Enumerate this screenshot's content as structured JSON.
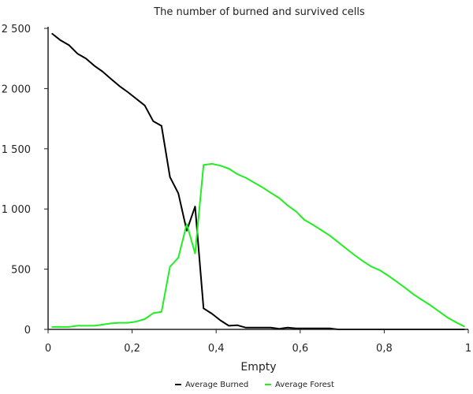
{
  "chart_data": {
    "type": "line",
    "title": "The number of burned and survived cells",
    "xlabel": "Empty",
    "ylabel": "",
    "xlim": [
      0,
      1
    ],
    "ylim": [
      0,
      2500
    ],
    "grid": false,
    "legend_position": "bottom",
    "x_ticks": [
      {
        "value": 0,
        "label": "0"
      },
      {
        "value": 0.2,
        "label": "0,2"
      },
      {
        "value": 0.4,
        "label": "0,4"
      },
      {
        "value": 0.6,
        "label": "0,6"
      },
      {
        "value": 0.8,
        "label": "0,8"
      },
      {
        "value": 1,
        "label": "1"
      }
    ],
    "y_ticks": [
      {
        "value": 0,
        "label": "0"
      },
      {
        "value": 500,
        "label": "500"
      },
      {
        "value": 1000,
        "label": "1 000"
      },
      {
        "value": 1500,
        "label": "1 500"
      },
      {
        "value": 2000,
        "label": "2 000"
      },
      {
        "value": 2500,
        "label": "2 500"
      }
    ],
    "series": [
      {
        "name": "Average Burned",
        "color": "#000000",
        "x": [
          0.01,
          0.03,
          0.05,
          0.07,
          0.09,
          0.11,
          0.13,
          0.15,
          0.17,
          0.19,
          0.21,
          0.23,
          0.25,
          0.27,
          0.29,
          0.31,
          0.33,
          0.35,
          0.37,
          0.39,
          0.41,
          0.43,
          0.45,
          0.47,
          0.49,
          0.51,
          0.53,
          0.55,
          0.57,
          0.59,
          0.61,
          0.63,
          0.65,
          0.67,
          0.69,
          0.71,
          0.73,
          0.75,
          0.77,
          0.79,
          0.81,
          0.83,
          0.85,
          0.87,
          0.89,
          0.91,
          0.93,
          0.95,
          0.97,
          0.99
        ],
        "values": [
          2455,
          2400,
          2360,
          2290,
          2250,
          2190,
          2140,
          2080,
          2020,
          1970,
          1915,
          1860,
          1730,
          1690,
          1265,
          1130,
          820,
          1020,
          175,
          130,
          75,
          30,
          35,
          15,
          15,
          15,
          15,
          5,
          15,
          8,
          8,
          8,
          8,
          8,
          0,
          0,
          0,
          0,
          0,
          0,
          0,
          0,
          0,
          0,
          0,
          0,
          0,
          0,
          0,
          0
        ]
      },
      {
        "name": "Average Forest",
        "color": "#22ee22",
        "x": [
          0.01,
          0.03,
          0.05,
          0.07,
          0.09,
          0.11,
          0.13,
          0.15,
          0.17,
          0.19,
          0.21,
          0.23,
          0.25,
          0.27,
          0.29,
          0.31,
          0.33,
          0.35,
          0.37,
          0.39,
          0.41,
          0.43,
          0.45,
          0.47,
          0.49,
          0.51,
          0.53,
          0.55,
          0.57,
          0.59,
          0.61,
          0.63,
          0.65,
          0.67,
          0.69,
          0.71,
          0.73,
          0.75,
          0.77,
          0.79,
          0.81,
          0.83,
          0.85,
          0.87,
          0.89,
          0.91,
          0.93,
          0.95,
          0.97,
          0.99
        ],
        "values": [
          20,
          20,
          20,
          30,
          30,
          30,
          40,
          50,
          55,
          55,
          65,
          85,
          135,
          145,
          520,
          595,
          875,
          630,
          1365,
          1375,
          1360,
          1335,
          1290,
          1260,
          1220,
          1180,
          1135,
          1090,
          1030,
          980,
          910,
          870,
          825,
          780,
          725,
          670,
          615,
          565,
          520,
          490,
          445,
          395,
          345,
          290,
          245,
          200,
          150,
          100,
          60,
          25
        ]
      }
    ]
  }
}
